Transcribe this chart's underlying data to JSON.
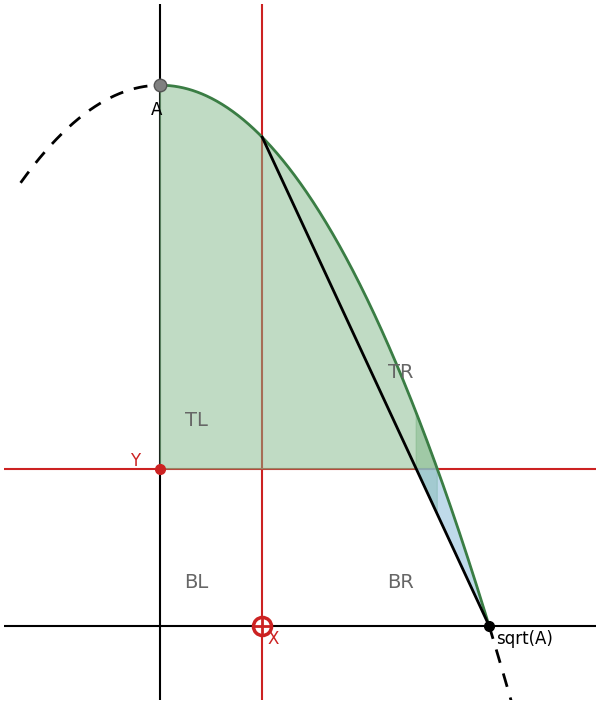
{
  "A": 4.0,
  "figsize": [
    6.0,
    7.04
  ],
  "dpi": 100,
  "xlim": [
    -0.95,
    2.65
  ],
  "ylim": [
    -0.55,
    4.6
  ],
  "x_rv": 0.62,
  "y_rh": 1.16,
  "green_fill_color": "#82b98a",
  "green_fill_alpha": 0.5,
  "blue_fill_color": "#8bbcda",
  "blue_fill_alpha": 0.55,
  "parabola_color": "#3a7d44",
  "line_color": "black",
  "red_line_color": "#cc2222",
  "label_fontsize": 14,
  "point_label_fontsize": 12,
  "bg_color": "#ffffff",
  "point_A_label": "A",
  "point_X_label": "X",
  "point_Y_label": "Y",
  "point_sqrtA_label": "sqrt(A)",
  "tl_label": "TL",
  "tr_label": "TR",
  "bl_label": "BL",
  "br_label": "BR"
}
